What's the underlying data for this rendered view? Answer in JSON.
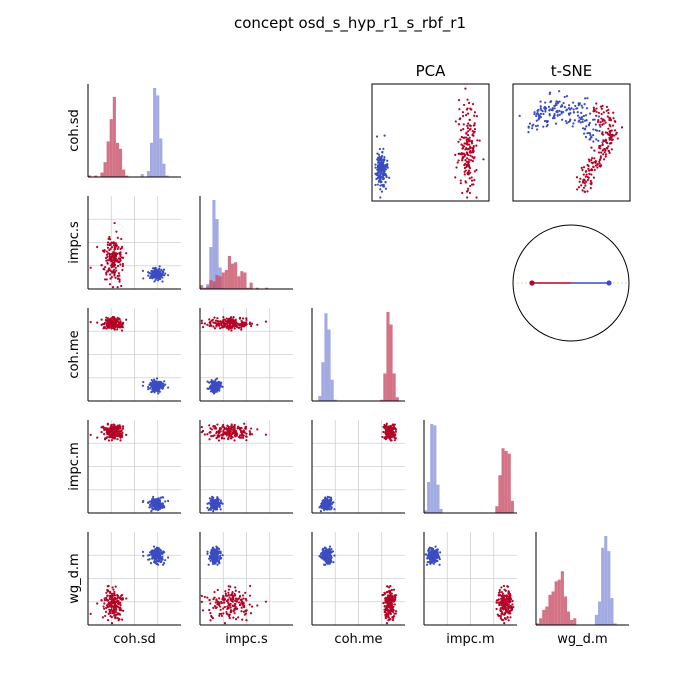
{
  "title": "concept osd_s_hyp_r1_s_rbf_r1",
  "colors": {
    "class_a": "#3b4cc0",
    "class_b": "#b40426",
    "hist_a": "#8c96dc",
    "hist_b": "#c85066",
    "grid": "#d0d0d0"
  },
  "chart_data": {
    "type": "scatter",
    "variables": [
      "coh.sd",
      "impc.s",
      "coh.me",
      "impc.m",
      "wg_d.m"
    ],
    "classes": [
      "class_a",
      "class_b"
    ],
    "class_centers": {
      "class_a": [
        0.73,
        0.16,
        0.16,
        0.1,
        0.75
      ],
      "class_b": [
        0.27,
        0.33,
        0.83,
        0.87,
        0.23
      ]
    },
    "class_spread": {
      "class_a": [
        0.04,
        0.03,
        0.03,
        0.03,
        0.04
      ],
      "class_b": [
        0.06,
        0.12,
        0.03,
        0.04,
        0.08
      ]
    },
    "points_per_class": 180,
    "projections": [
      {
        "title": "PCA"
      },
      {
        "title": "t-SNE"
      }
    ],
    "circle": {
      "type": "class-direction",
      "grid": false
    }
  }
}
